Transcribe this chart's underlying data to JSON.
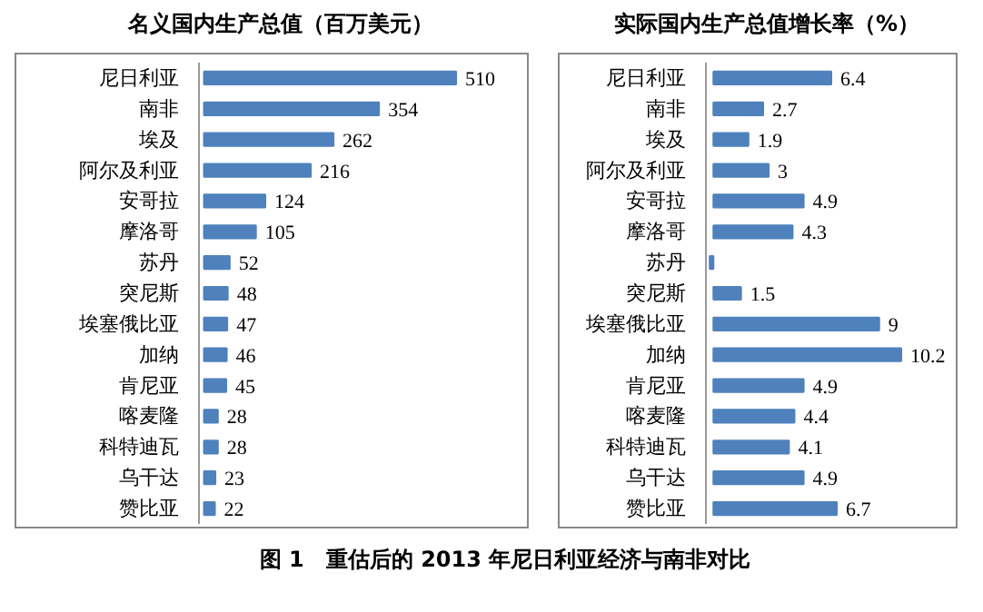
{
  "chart_data": [
    {
      "type": "bar",
      "orientation": "horizontal",
      "title": "名义国内生产总值（百万美元）",
      "categories": [
        "尼日利亚",
        "南非",
        "埃及",
        "阿尔及利亚",
        "安哥拉",
        "摩洛哥",
        "苏丹",
        "突尼斯",
        "埃塞俄比亚",
        "加纳",
        "肯尼亚",
        "喀麦隆",
        "科特迪瓦",
        "乌干达",
        "赞比亚"
      ],
      "values": [
        510,
        354,
        262,
        216,
        124,
        105,
        52,
        48,
        47,
        46,
        45,
        28,
        28,
        23,
        22
      ],
      "color": "#4f81bd",
      "data_labels": true
    },
    {
      "type": "bar",
      "orientation": "horizontal",
      "title": "实际国内生产总值增长率（%）",
      "categories": [
        "尼日利亚",
        "南非",
        "埃及",
        "阿尔及利亚",
        "安哥拉",
        "摩洛哥",
        "苏丹",
        "突尼斯",
        "埃塞俄比亚",
        "加纳",
        "肯尼亚",
        "喀麦隆",
        "科特迪瓦",
        "乌干达",
        "赞比亚"
      ],
      "values": [
        6.4,
        2.7,
        1.9,
        3,
        4.9,
        4.3,
        -0.2,
        1.5,
        9,
        10.2,
        4.9,
        4.4,
        4.1,
        4.9,
        6.7
      ],
      "color": "#4f81bd",
      "value_labels": [
        "6.4",
        "2.7",
        "1.9",
        "3",
        "4.9",
        "4.3",
        null,
        "1.5",
        "9",
        "10.2",
        "4.9",
        "4.4",
        "4.1",
        "4.9",
        "6.7"
      ],
      "annotations": [
        "图 1　重估后的 2013 年尼日利亚经济与南非对比"
      ]
    }
  ]
}
